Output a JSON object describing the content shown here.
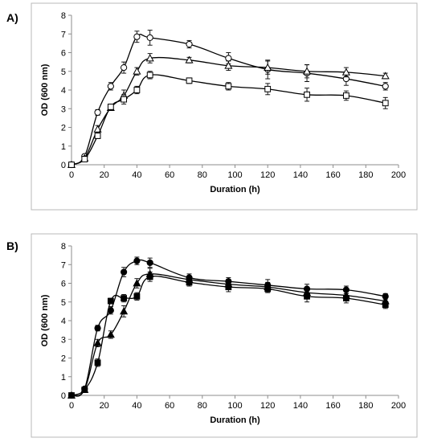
{
  "chart_data": [
    {
      "type": "line",
      "panel_label": "A)",
      "xlabel": "Duration (h)",
      "ylabel": "OD (600 nm)",
      "xlim": [
        0,
        200
      ],
      "ylim": [
        0,
        8
      ],
      "x_ticks": [
        "0",
        "20",
        "40",
        "60",
        "80",
        "100",
        "120",
        "140",
        "160",
        "180",
        "200"
      ],
      "y_ticks": [
        "0",
        "1",
        "2",
        "3",
        "4",
        "5",
        "6",
        "7",
        "8"
      ],
      "grid": false,
      "legend": "none",
      "series": [
        {
          "marker": "circle-open",
          "x": [
            0,
            8,
            16,
            24,
            32,
            40,
            48,
            72,
            96,
            120,
            144,
            168,
            192
          ],
          "y": [
            0.0,
            0.45,
            2.8,
            4.2,
            5.2,
            6.85,
            6.8,
            6.45,
            5.7,
            5.1,
            4.9,
            4.6,
            4.2
          ],
          "err": [
            0.05,
            0.1,
            0.15,
            0.2,
            0.3,
            0.3,
            0.4,
            0.2,
            0.3,
            0.5,
            0.45,
            0.35,
            0.2
          ]
        },
        {
          "marker": "triangle-open",
          "x": [
            0,
            8,
            16,
            24,
            32,
            40,
            48,
            72,
            96,
            120,
            144,
            168,
            192
          ],
          "y": [
            0.0,
            0.35,
            1.9,
            3.05,
            3.7,
            5.0,
            5.7,
            5.6,
            5.3,
            5.2,
            5.0,
            4.95,
            4.75
          ],
          "err": [
            0.05,
            0.1,
            0.2,
            0.15,
            0.3,
            0.2,
            0.25,
            0.15,
            0.25,
            0.35,
            0.35,
            0.25,
            0.15
          ]
        },
        {
          "marker": "square-open",
          "x": [
            0,
            8,
            16,
            24,
            32,
            40,
            48,
            72,
            96,
            120,
            144,
            168,
            192
          ],
          "y": [
            0.0,
            0.3,
            1.55,
            3.1,
            3.5,
            4.0,
            4.8,
            4.5,
            4.2,
            4.05,
            3.75,
            3.7,
            3.3
          ],
          "err": [
            0.05,
            0.1,
            0.15,
            0.15,
            0.25,
            0.2,
            0.2,
            0.15,
            0.2,
            0.3,
            0.35,
            0.25,
            0.3
          ]
        }
      ]
    },
    {
      "type": "line",
      "panel_label": "B)",
      "xlabel": "Duration (h)",
      "ylabel": "OD (600 nm)",
      "xlim": [
        0,
        200
      ],
      "ylim": [
        0,
        8
      ],
      "x_ticks": [
        "0",
        "20",
        "40",
        "60",
        "80",
        "100",
        "120",
        "140",
        "160",
        "180",
        "200"
      ],
      "y_ticks": [
        "0",
        "1",
        "2",
        "3",
        "4",
        "5",
        "6",
        "7",
        "8"
      ],
      "grid": false,
      "legend": "none",
      "series": [
        {
          "marker": "circle-filled",
          "x": [
            0,
            8,
            16,
            24,
            32,
            40,
            48,
            72,
            96,
            120,
            144,
            168,
            192
          ],
          "y": [
            0.0,
            0.35,
            3.6,
            4.55,
            6.6,
            7.2,
            7.1,
            6.3,
            6.1,
            5.9,
            5.7,
            5.65,
            5.3
          ],
          "err": [
            0.05,
            0.1,
            0.15,
            0.2,
            0.25,
            0.2,
            0.25,
            0.2,
            0.2,
            0.3,
            0.25,
            0.2,
            0.15
          ]
        },
        {
          "marker": "triangle-filled",
          "x": [
            0,
            8,
            16,
            24,
            32,
            40,
            48,
            72,
            96,
            120,
            144,
            168,
            192
          ],
          "y": [
            0.0,
            0.3,
            2.8,
            3.25,
            4.5,
            6.0,
            6.5,
            6.2,
            5.95,
            5.8,
            5.5,
            5.35,
            5.05
          ],
          "err": [
            0.05,
            0.1,
            0.2,
            0.2,
            0.3,
            0.25,
            0.3,
            0.2,
            0.25,
            0.25,
            0.3,
            0.2,
            0.2
          ]
        },
        {
          "marker": "square-filled",
          "x": [
            0,
            8,
            16,
            24,
            32,
            40,
            48,
            72,
            96,
            120,
            144,
            168,
            192
          ],
          "y": [
            0.0,
            0.3,
            1.75,
            5.05,
            5.2,
            5.3,
            6.35,
            6.05,
            5.8,
            5.7,
            5.3,
            5.2,
            4.85
          ],
          "err": [
            0.05,
            0.1,
            0.2,
            0.15,
            0.2,
            0.2,
            0.25,
            0.2,
            0.25,
            0.2,
            0.3,
            0.25,
            0.2
          ]
        }
      ]
    }
  ]
}
